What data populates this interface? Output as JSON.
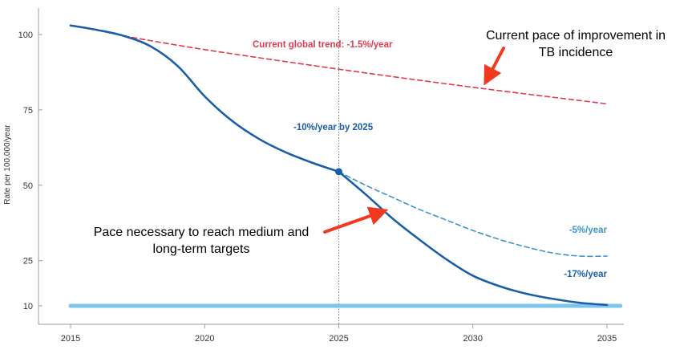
{
  "chart_data": {
    "type": "line",
    "title": "",
    "xlabel": "",
    "ylabel": "Rate per 100,000/year",
    "xlim": [
      2015,
      2035
    ],
    "ylim": [
      5,
      110
    ],
    "xticks": [
      2015,
      2020,
      2025,
      2030,
      2035
    ],
    "yticks": [
      10,
      25,
      50,
      75,
      100
    ],
    "grid": false,
    "colors": {
      "trend": "#e23a4e",
      "main": "#1a5ea8",
      "alt": "#3d94cc",
      "target": "#7cc4ec",
      "marker": "#1a5ea8",
      "arrow": "#f03a1e"
    },
    "series": [
      {
        "name": "Current global trend:  -1.5%/year",
        "style": "dashed",
        "x": [
          2017,
          2020,
          2025,
          2030,
          2035
        ],
        "y": [
          99.5,
          95.0,
          88.5,
          82.5,
          77.0
        ]
      },
      {
        "name": "-10%/year by 2025",
        "style": "solid",
        "x": [
          2015,
          2016,
          2017,
          2018,
          2019,
          2020,
          2021,
          2022,
          2023,
          2024,
          2025
        ],
        "y": [
          103.0,
          101.5,
          99.5,
          96.0,
          89.5,
          79.5,
          71.5,
          65.5,
          61.0,
          57.5,
          54.5
        ]
      },
      {
        "name": "-17%/year",
        "style": "solid",
        "x": [
          2025,
          2026,
          2027,
          2028,
          2029,
          2030,
          2031,
          2032,
          2033,
          2034,
          2035
        ],
        "y": [
          54.5,
          47.0,
          39.0,
          32.0,
          25.5,
          20.0,
          16.5,
          14.0,
          12.3,
          11.0,
          10.3
        ]
      },
      {
        "name": "-5%/year",
        "style": "dashed",
        "x": [
          2025,
          2026,
          2027,
          2028,
          2029,
          2030,
          2031,
          2032,
          2033,
          2034,
          2035
        ],
        "y": [
          54.5,
          50.0,
          46.0,
          42.0,
          38.5,
          35.0,
          32.0,
          29.5,
          27.5,
          26.5,
          26.5
        ]
      },
      {
        "name": "",
        "style": "solid",
        "x": [
          2015,
          2035.5
        ],
        "y": [
          10,
          10
        ]
      }
    ],
    "marker_point": {
      "x": 2025,
      "y": 54.5
    },
    "reference_line": {
      "x": 2025
    },
    "annotations": [
      {
        "text": "Current global trend:  -1.5%/year",
        "series": "trend"
      },
      {
        "text": "-10%/year by 2025",
        "series": "main"
      },
      {
        "text": "-5%/year",
        "series": "alt"
      },
      {
        "text": "-17%/year",
        "series": "main"
      }
    ],
    "callouts": [
      {
        "lines": [
          "Current pace of improvement in",
          "TB incidence"
        ]
      },
      {
        "lines": [
          "Pace necessary to reach medium and",
          "long-term targets"
        ]
      }
    ]
  }
}
